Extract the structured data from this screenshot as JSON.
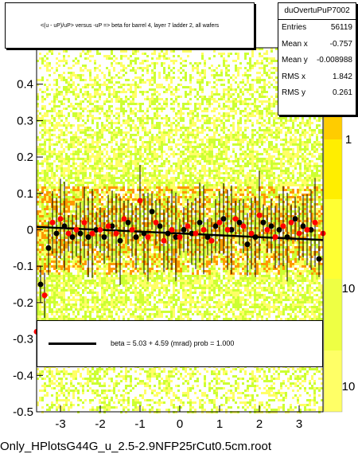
{
  "chart_data": {
    "type": "scatter",
    "title": "<(u - uP)/uP> versus -uP => beta for barrel 4, layer 7 ladder 2, all wafers",
    "xlabel": "",
    "ylabel": "",
    "xlim": [
      -3.6,
      3.6
    ],
    "ylim": [
      -0.5,
      0.5
    ],
    "x_ticks": [
      "-3",
      "-2",
      "-1",
      "0",
      "1",
      "2",
      "3"
    ],
    "y_ticks": [
      "-0.5",
      "-0.4",
      "-0.3",
      "-0.2",
      "-0.1",
      "0",
      "0.1",
      "0.2",
      "0.3",
      "0.4"
    ],
    "z_scale": "log",
    "z_ticks": [
      "1",
      "10",
      "10"
    ],
    "fit": {
      "beta_mrad": 5.03,
      "err_mrad": 4.59,
      "prob": 1.0,
      "slope": -0.005,
      "intercept": -0.01
    },
    "series": [
      {
        "color": "#000000",
        "x": [
          -3.5,
          -3.3,
          -3.1,
          -2.9,
          -2.7,
          -2.5,
          -2.3,
          -2.1,
          -1.9,
          -1.7,
          -1.5,
          -1.3,
          -1.1,
          -0.9,
          -0.7,
          -0.5,
          -0.3,
          -0.1,
          0.1,
          0.3,
          0.5,
          0.7,
          0.9,
          1.1,
          1.3,
          1.5,
          1.7,
          1.9,
          2.1,
          2.3,
          2.5,
          2.7,
          2.9,
          3.1,
          3.3,
          3.5
        ],
        "y": [
          -0.15,
          -0.05,
          -0.01,
          0.01,
          -0.02,
          -0.01,
          -0.02,
          0.0,
          -0.02,
          0.01,
          -0.03,
          0.02,
          -0.02,
          -0.01,
          0.05,
          0.01,
          -0.01,
          -0.02,
          0.0,
          -0.01,
          0.02,
          -0.02,
          0.01,
          0.03,
          0.0,
          0.02,
          -0.04,
          -0.02,
          0.02,
          0.01,
          0.0,
          -0.02,
          0.03,
          0.01,
          0.0,
          -0.08
        ]
      },
      {
        "color": "#ff0000",
        "x": [
          -3.6,
          -3.4,
          -3.2,
          -3.0,
          -2.8,
          -2.6,
          -2.4,
          -2.2,
          -2.0,
          -1.8,
          -1.6,
          -1.4,
          -1.2,
          -1.0,
          -0.8,
          -0.6,
          -0.4,
          -0.2,
          0.0,
          0.2,
          0.4,
          0.6,
          0.8,
          1.0,
          1.2,
          1.4,
          1.6,
          1.8,
          2.0,
          2.2,
          2.4,
          2.6,
          2.8,
          3.0,
          3.2,
          3.4,
          3.6
        ],
        "y": [
          -0.28,
          -0.18,
          0.02,
          0.03,
          -0.01,
          0.0,
          0.02,
          -0.01,
          0.0,
          0.01,
          -0.01,
          0.03,
          0.0,
          0.08,
          -0.02,
          0.02,
          -0.03,
          0.0,
          -0.02,
          0.01,
          -0.01,
          0.0,
          -0.03,
          0.02,
          0.0,
          0.03,
          0.01,
          -0.01,
          0.04,
          0.0,
          -0.02,
          0.01,
          0.02,
          -0.01,
          0.0,
          0.02,
          -0.01
        ]
      }
    ]
  },
  "stats": {
    "name": "duOvertuPuP7002",
    "rows": [
      {
        "label": "Entries",
        "value": "56119"
      },
      {
        "label": "Mean x",
        "value": "-0.757"
      },
      {
        "label": "Mean y",
        "value": "-0.008988"
      },
      {
        "label": "RMS x",
        "value": "1.842"
      },
      {
        "label": "RMS y",
        "value": "0.261"
      }
    ]
  },
  "legend": {
    "text": "beta =     5.03 +   4.59 (mrad) prob = 1.000"
  },
  "filename": "Only_HPlotsG44G_u_2.5-2.9NFP25rCut0.5cm.root",
  "colors": {
    "heat_low": "#ffff66",
    "heat_high": "#ff9900",
    "heat_mid": "#ccff33",
    "palette_bar": "#ffff00"
  }
}
